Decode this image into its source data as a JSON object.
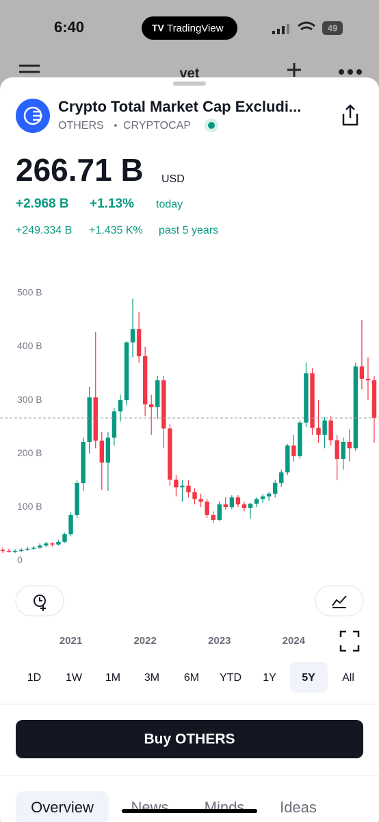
{
  "status": {
    "time": "6:40",
    "app": "TradingView",
    "battery": "49"
  },
  "nav": {
    "title": "vet"
  },
  "symbol": {
    "name": "Crypto Total Market Cap Excludi...",
    "ticker": "OTHERS",
    "separator": "•",
    "exchange": "CRYPTOCAP"
  },
  "quote": {
    "price": "266.71 B",
    "currency": "USD",
    "change": "+2.968 B",
    "change_pct": "+1.13%",
    "period": "today",
    "long_change": "+249.334 B",
    "long_change_pct": "+1.435 K%",
    "long_period": "past 5 years"
  },
  "chart": {
    "type": "candlestick",
    "categories": [
      null,
      null,
      null,
      null,
      null,
      null,
      null,
      null,
      null,
      null,
      null,
      "2021",
      null,
      null,
      null,
      null,
      null,
      null,
      null,
      null,
      null,
      null,
      null,
      "2022",
      null,
      null,
      null,
      null,
      null,
      null,
      null,
      null,
      null,
      null,
      null,
      "2023",
      null,
      null,
      null,
      null,
      null,
      null,
      null,
      null,
      null,
      null,
      null,
      "2024",
      null,
      null,
      null,
      null,
      null,
      null,
      null,
      null,
      null,
      null,
      null,
      null,
      null
    ],
    "open": [
      20,
      18,
      16,
      18,
      20,
      22,
      24,
      28,
      32,
      30,
      35,
      49,
      85,
      145,
      222,
      305,
      224,
      183,
      230,
      279,
      300,
      408,
      433,
      382,
      292,
      287,
      337,
      247,
      151,
      137,
      140,
      128,
      115,
      110,
      85,
      76,
      105,
      100,
      118,
      105,
      98,
      106,
      115,
      120,
      125,
      145,
      165,
      215,
      195,
      258,
      350,
      248,
      235,
      262,
      225,
      190,
      222,
      210,
      363,
      340,
      337
    ],
    "high": [
      24,
      22,
      21,
      23,
      26,
      27,
      32,
      35,
      34,
      38,
      52,
      90,
      150,
      230,
      325,
      427,
      240,
      240,
      285,
      310,
      410,
      490,
      465,
      400,
      310,
      345,
      345,
      255,
      160,
      150,
      150,
      135,
      125,
      115,
      92,
      110,
      118,
      122,
      122,
      110,
      108,
      118,
      124,
      128,
      150,
      170,
      218,
      235,
      262,
      370,
      360,
      300,
      268,
      270,
      235,
      230,
      245,
      370,
      450,
      380,
      345
    ],
    "low": [
      14,
      15,
      14,
      16,
      18,
      20,
      22,
      25,
      26,
      28,
      33,
      45,
      80,
      130,
      200,
      210,
      132,
      130,
      215,
      260,
      290,
      380,
      370,
      270,
      235,
      265,
      210,
      140,
      120,
      110,
      118,
      105,
      100,
      80,
      70,
      74,
      95,
      96,
      100,
      92,
      78,
      100,
      108,
      112,
      118,
      138,
      160,
      185,
      190,
      250,
      235,
      220,
      210,
      215,
      150,
      170,
      185,
      205,
      320,
      300,
      220
    ],
    "close": [
      18,
      16,
      18,
      20,
      22,
      24,
      28,
      32,
      30,
      35,
      49,
      85,
      145,
      222,
      305,
      224,
      183,
      230,
      279,
      300,
      408,
      433,
      382,
      292,
      287,
      337,
      247,
      151,
      137,
      140,
      128,
      115,
      110,
      85,
      76,
      105,
      100,
      118,
      105,
      98,
      106,
      115,
      120,
      125,
      145,
      165,
      215,
      195,
      258,
      350,
      248,
      235,
      262,
      225,
      190,
      222,
      210,
      363,
      340,
      337,
      266.71
    ],
    "up_color": "#089981",
    "down_color": "#f23645",
    "ylim": [
      -15,
      523
    ],
    "yticks": [
      0,
      {
        "value": 100,
        "label": "100 B"
      },
      {
        "value": 200,
        "label": "200 B"
      },
      {
        "value": 300,
        "label": "300 B"
      },
      {
        "value": 400,
        "label": "400 B"
      },
      {
        "value": 500,
        "label": "500 B"
      }
    ]
  },
  "ranges": {
    "items": [
      "1D",
      "1W",
      "1M",
      "3M",
      "6M",
      "YTD",
      "1Y",
      "5Y",
      "All"
    ],
    "selected": "5Y"
  },
  "button": "Buy OTHERS",
  "tabs": [
    "Overview",
    "News",
    "Minds",
    "Ideas"
  ]
}
